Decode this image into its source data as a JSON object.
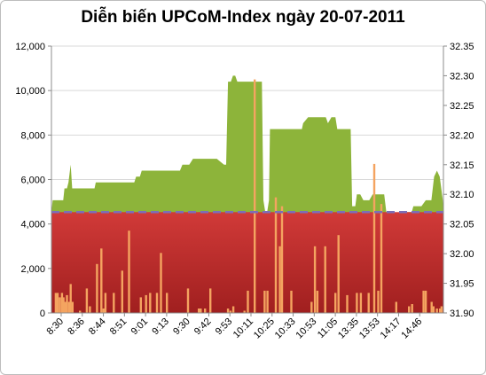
{
  "chart_data": {
    "type": "area",
    "title": "Diễn biến UPCoM-Index ngày 20-07-2011",
    "x_tick_labels": [
      "8:30",
      "8:36",
      "8:44",
      "8:51",
      "9:01",
      "9:13",
      "9:30",
      "9:42",
      "9:53",
      "10:11",
      "10:25",
      "10:33",
      "10:53",
      "11:05",
      "13:35",
      "13:53",
      "14:17",
      "14:46"
    ],
    "left_axis": {
      "ylim": [
        0,
        12000
      ],
      "ticks": [
        "0",
        "2,000",
        "4,000",
        "6,000",
        "8,000",
        "10,000",
        "12,000"
      ]
    },
    "right_axis": {
      "ylim": [
        31.9,
        32.35
      ],
      "ticks": [
        "31.90",
        "31.95",
        "32.00",
        "32.05",
        "32.10",
        "32.15",
        "32.20",
        "32.25",
        "32.30",
        "32.35"
      ]
    },
    "reference_value": 32.07,
    "index_points": [
      [
        0,
        32.07
      ],
      [
        0.4,
        32.09
      ],
      [
        3.8,
        32.09
      ],
      [
        4.2,
        32.11
      ],
      [
        5,
        32.11
      ],
      [
        5.5,
        32.12
      ],
      [
        6.2,
        32.15
      ],
      [
        6.7,
        32.11
      ],
      [
        13.9,
        32.11
      ],
      [
        14.3,
        32.12
      ],
      [
        26.7,
        32.12
      ],
      [
        27.3,
        32.13
      ],
      [
        28.5,
        32.13
      ],
      [
        29.1,
        32.14
      ],
      [
        41.4,
        32.14
      ],
      [
        42.2,
        32.15
      ],
      [
        44.4,
        32.15
      ],
      [
        45.6,
        32.16
      ],
      [
        53.3,
        32.16
      ],
      [
        55.6,
        32.15
      ],
      [
        56.3,
        32.15
      ],
      [
        56.9,
        32.29
      ],
      [
        57.8,
        32.29
      ],
      [
        58.5,
        32.3
      ],
      [
        59.2,
        32.3
      ],
      [
        59.9,
        32.29
      ],
      [
        67.8,
        32.29
      ],
      [
        68.3,
        32.09
      ],
      [
        69.2,
        32.06
      ],
      [
        70.1,
        32.09
      ],
      [
        70.4,
        32.21
      ],
      [
        80.7,
        32.21
      ],
      [
        81.1,
        32.22
      ],
      [
        82.7,
        32.23
      ],
      [
        88.4,
        32.23
      ],
      [
        89.1,
        32.22
      ],
      [
        90.2,
        32.23
      ],
      [
        91.5,
        32.23
      ],
      [
        92.1,
        32.21
      ],
      [
        96.4,
        32.21
      ],
      [
        96.9,
        32.08
      ],
      [
        97.9,
        32.08
      ],
      [
        98.4,
        32.1
      ],
      [
        99.5,
        32.1
      ],
      [
        100.5,
        32.09
      ],
      [
        102.4,
        32.09
      ],
      [
        103.5,
        32.1
      ],
      [
        107.2,
        32.1
      ],
      [
        107.9,
        32.07
      ],
      [
        110.2,
        32.07
      ],
      [
        111.1,
        32.06
      ],
      [
        112.5,
        32.06
      ],
      [
        113.4,
        32.07
      ],
      [
        116.1,
        32.07
      ],
      [
        116.6,
        32.08
      ],
      [
        119.2,
        32.08
      ],
      [
        120.6,
        32.09
      ],
      [
        122.4,
        32.09
      ],
      [
        123.3,
        32.13
      ],
      [
        124.2,
        32.14
      ],
      [
        125.1,
        32.13
      ],
      [
        126.1,
        32.09
      ],
      [
        126.3,
        32.07
      ]
    ],
    "volume_bars": [
      [
        1.4,
        900
      ],
      [
        2.0,
        900
      ],
      [
        2.7,
        700
      ],
      [
        3.4,
        900
      ],
      [
        3.9,
        700
      ],
      [
        4.5,
        500
      ],
      [
        5.0,
        800
      ],
      [
        5.7,
        500
      ],
      [
        6.2,
        1300
      ],
      [
        6.8,
        500
      ],
      [
        9.2,
        100
      ],
      [
        11.4,
        1100
      ],
      [
        12.4,
        300
      ],
      [
        14.7,
        2200
      ],
      [
        16.1,
        2900
      ],
      [
        16.8,
        200
      ],
      [
        17.4,
        900
      ],
      [
        20.1,
        900
      ],
      [
        22.8,
        1900
      ],
      [
        25.0,
        3700
      ],
      [
        28.8,
        700
      ],
      [
        30.5,
        800
      ],
      [
        31.8,
        900
      ],
      [
        34.0,
        900
      ],
      [
        35.3,
        2700
      ],
      [
        37.2,
        900
      ],
      [
        44.0,
        1100
      ],
      [
        47.5,
        200
      ],
      [
        48.1,
        200
      ],
      [
        49.5,
        200
      ],
      [
        51.2,
        1100
      ],
      [
        56.9,
        200
      ],
      [
        57.7,
        100
      ],
      [
        58.6,
        300
      ],
      [
        62.2,
        100
      ],
      [
        63.3,
        1000
      ],
      [
        65.5,
        10500
      ],
      [
        68.7,
        1000
      ],
      [
        69.6,
        1000
      ],
      [
        72.3,
        5200
      ],
      [
        73.6,
        3000
      ],
      [
        74.3,
        4800
      ],
      [
        77.3,
        1000
      ],
      [
        83.8,
        500
      ],
      [
        84.9,
        3000
      ],
      [
        85.7,
        1000
      ],
      [
        88.2,
        3000
      ],
      [
        91.5,
        900
      ],
      [
        92.5,
        3500
      ],
      [
        95.3,
        800
      ],
      [
        98.4,
        900
      ],
      [
        99.7,
        900
      ],
      [
        102.2,
        900
      ],
      [
        104.0,
        6700
      ],
      [
        105.3,
        1000
      ],
      [
        106.3,
        4900
      ],
      [
        111.1,
        500
      ],
      [
        115.2,
        300
      ],
      [
        116.2,
        400
      ],
      [
        119.9,
        1000
      ],
      [
        120.6,
        1000
      ],
      [
        122.5,
        500
      ],
      [
        123.1,
        300
      ],
      [
        124.2,
        200
      ],
      [
        125.2,
        200
      ],
      [
        125.7,
        300
      ]
    ],
    "x_count": 126.3,
    "grid": true,
    "legend": "none",
    "colors": {
      "index_fill": "#8db43a",
      "below_reference_fill_top": "#d13a38",
      "below_reference_fill_bottom": "#a01f1f",
      "volume_bars": "#f4a460",
      "reference_line": "#7b6fb8",
      "grid": "#d9d9d9"
    }
  }
}
